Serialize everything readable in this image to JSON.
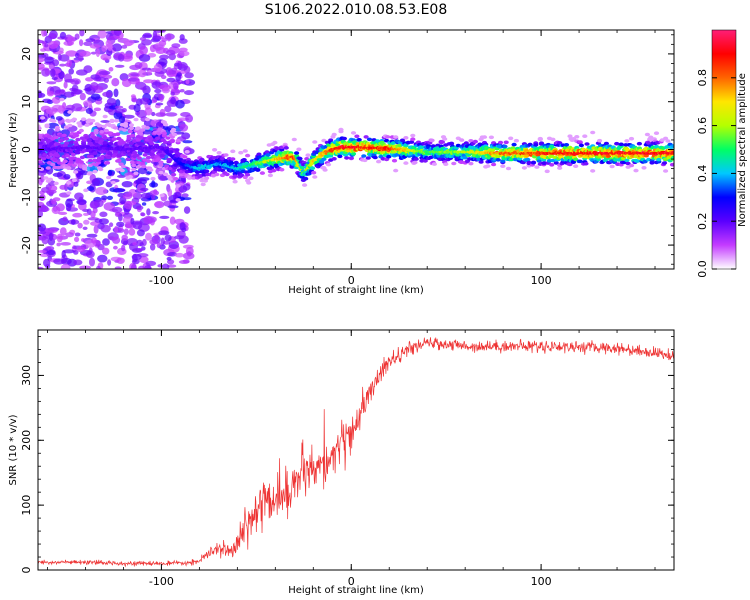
{
  "title": "S106.2022.010.08.53.E08",
  "chart_data": [
    {
      "type": "heatmap",
      "xlabel": "Height of straight line (km)",
      "ylabel": "Frequency (Hz)",
      "xlim": [
        -165,
        170
      ],
      "ylim": [
        -25,
        25
      ],
      "x_ticks": [
        -100,
        0,
        100
      ],
      "x_tick_labels": [
        "-100",
        "0",
        "100"
      ],
      "y_ticks": [
        -20,
        -10,
        0,
        10,
        20
      ],
      "y_tick_labels": [
        "-20",
        "-10",
        "0",
        "10",
        "20"
      ],
      "ridge": {
        "x": [
          -165,
          -140,
          -120,
          -100,
          -90,
          -80,
          -70,
          -60,
          -50,
          -40,
          -30,
          -25,
          -20,
          -15,
          -10,
          -5,
          0,
          20,
          40,
          60,
          80,
          100,
          120,
          140,
          170
        ],
        "y": [
          0,
          0.5,
          0,
          0.5,
          -3,
          -4,
          -3,
          -4,
          -3,
          -2,
          -1.5,
          -5,
          -2.5,
          -1,
          0,
          0.5,
          0.5,
          0.2,
          -0.5,
          -0.5,
          -0.8,
          -0.8,
          -0.8,
          -0.8,
          -0.8
        ],
        "amplitude": [
          0.2,
          0.2,
          0.2,
          0.2,
          0.3,
          0.45,
          0.4,
          0.45,
          0.55,
          0.75,
          0.9,
          0.55,
          0.75,
          0.75,
          0.9,
          0.95,
          0.95,
          0.9,
          0.55,
          0.65,
          0.85,
          0.9,
          0.95,
          0.95,
          0.95
        ]
      },
      "colorbar": {
        "label": "Normalized spectral amplitude",
        "ticks": [
          0.0,
          0.2,
          0.4,
          0.6,
          0.8
        ],
        "tick_labels": [
          "0.0",
          "0.2",
          "0.4",
          "0.6",
          "0.8"
        ],
        "range": [
          0,
          1
        ],
        "colors": [
          "#ffffff",
          "#c43cff",
          "#5a00ff",
          "#0000ff",
          "#00c8ff",
          "#00ff64",
          "#b4ff00",
          "#ffe600",
          "#ff6400",
          "#ff0000",
          "#ff1e78"
        ]
      }
    },
    {
      "type": "line",
      "xlabel": "Height of straight line (km)",
      "ylabel": "SNR (10 * v/v)",
      "xlim": [
        -165,
        170
      ],
      "ylim": [
        0,
        370
      ],
      "x_ticks": [
        -100,
        0,
        100
      ],
      "x_tick_labels": [
        "-100",
        "0",
        "100"
      ],
      "y_ticks": [
        0,
        100,
        200,
        300
      ],
      "y_tick_labels": [
        "0",
        "100",
        "200",
        "300"
      ],
      "series": [
        {
          "color": "#ee3333",
          "x": [
            -165,
            -150,
            -130,
            -110,
            -95,
            -85,
            -80,
            -75,
            -70,
            -65,
            -60,
            -55,
            -50,
            -45,
            -40,
            -35,
            -30,
            -25,
            -20,
            -15,
            -10,
            -5,
            0,
            5,
            10,
            15,
            20,
            25,
            30,
            35,
            40,
            50,
            60,
            80,
            100,
            120,
            140,
            160,
            170
          ],
          "y": [
            12,
            12,
            11,
            10,
            10,
            11,
            14,
            25,
            32,
            30,
            40,
            70,
            100,
            120,
            105,
            115,
            135,
            150,
            145,
            160,
            175,
            200,
            205,
            240,
            275,
            300,
            320,
            330,
            340,
            345,
            350,
            348,
            345,
            345,
            345,
            344,
            342,
            335,
            330
          ],
          "noise": [
            3,
            3,
            3,
            3,
            3,
            3,
            4,
            8,
            10,
            10,
            15,
            30,
            35,
            35,
            30,
            30,
            35,
            35,
            30,
            30,
            30,
            25,
            25,
            20,
            18,
            15,
            12,
            10,
            10,
            8,
            8,
            8,
            8,
            8,
            9,
            8,
            8,
            8,
            8
          ]
        }
      ]
    }
  ]
}
